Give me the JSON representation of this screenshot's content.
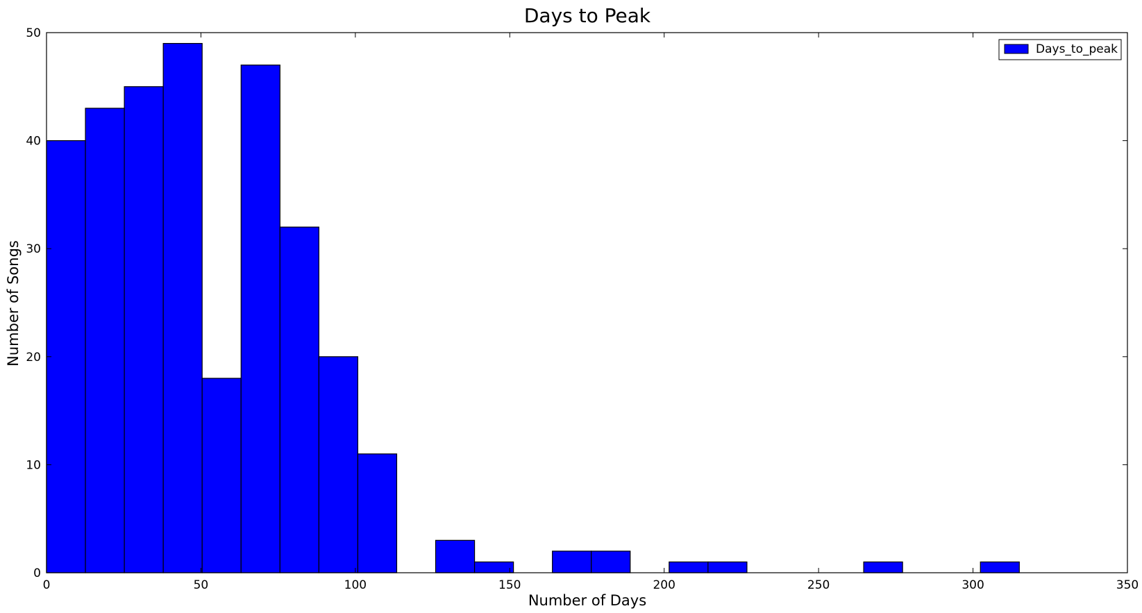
{
  "chart_data": {
    "type": "bar",
    "title": "Days to Peak",
    "xlabel": "Number of Days",
    "ylabel": "Number of Songs",
    "xlim": [
      0,
      350
    ],
    "ylim": [
      0,
      50
    ],
    "xticks": [
      0,
      50,
      100,
      150,
      200,
      250,
      300,
      350
    ],
    "yticks": [
      0,
      10,
      20,
      30,
      40,
      50
    ],
    "xtick_labels": [
      "0",
      "50",
      "100",
      "150",
      "200",
      "250",
      "300",
      "350"
    ],
    "ytick_labels": [
      "0",
      "10",
      "20",
      "30",
      "40",
      "50"
    ],
    "grid": false,
    "legend_position": "top-right",
    "bar_color": "#0000ff",
    "edge_color": "#000000",
    "series": [
      {
        "name": "Days_to_peak",
        "bins": [
          {
            "x0": 0,
            "x1": 12.6,
            "count": 40
          },
          {
            "x0": 12.6,
            "x1": 25.2,
            "count": 43
          },
          {
            "x0": 25.2,
            "x1": 37.8,
            "count": 45
          },
          {
            "x0": 37.8,
            "x1": 50.4,
            "count": 49
          },
          {
            "x0": 50.4,
            "x1": 63.0,
            "count": 18
          },
          {
            "x0": 63.0,
            "x1": 75.6,
            "count": 47
          },
          {
            "x0": 75.6,
            "x1": 88.2,
            "count": 32
          },
          {
            "x0": 88.2,
            "x1": 100.8,
            "count": 20
          },
          {
            "x0": 100.8,
            "x1": 113.4,
            "count": 11
          },
          {
            "x0": 113.4,
            "x1": 126.0,
            "count": 0
          },
          {
            "x0": 126.0,
            "x1": 138.6,
            "count": 3
          },
          {
            "x0": 138.6,
            "x1": 151.2,
            "count": 1
          },
          {
            "x0": 151.2,
            "x1": 163.8,
            "count": 0
          },
          {
            "x0": 163.8,
            "x1": 176.4,
            "count": 2
          },
          {
            "x0": 176.4,
            "x1": 189.0,
            "count": 2
          },
          {
            "x0": 189.0,
            "x1": 201.6,
            "count": 0
          },
          {
            "x0": 201.6,
            "x1": 214.2,
            "count": 1
          },
          {
            "x0": 214.2,
            "x1": 226.8,
            "count": 1
          },
          {
            "x0": 226.8,
            "x1": 239.4,
            "count": 0
          },
          {
            "x0": 239.4,
            "x1": 252.0,
            "count": 0
          },
          {
            "x0": 252.0,
            "x1": 264.6,
            "count": 0
          },
          {
            "x0": 264.6,
            "x1": 277.2,
            "count": 1
          },
          {
            "x0": 277.2,
            "x1": 289.8,
            "count": 0
          },
          {
            "x0": 289.8,
            "x1": 302.4,
            "count": 0
          },
          {
            "x0": 302.4,
            "x1": 315.0,
            "count": 1
          }
        ]
      }
    ]
  }
}
